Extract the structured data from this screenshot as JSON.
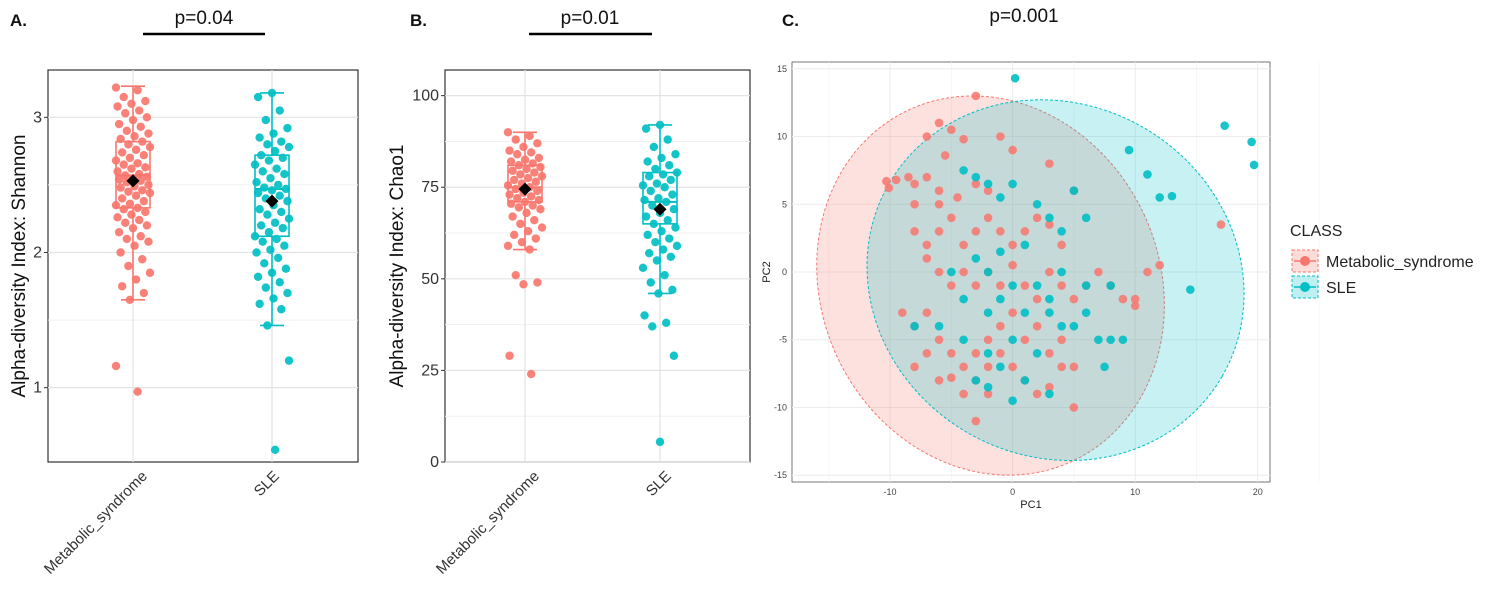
{
  "colors": {
    "metabolic": "#F8766D",
    "sle": "#00BFC4",
    "mean_marker": "#000000"
  },
  "chart_data": [
    {
      "panel": "A.",
      "type": "boxplot",
      "pvalue": "p=0.04",
      "ylabel": "Alpha-diversity Index: Shannon",
      "ylim": [
        0.45,
        3.35
      ],
      "yticks": [
        1,
        2,
        3
      ],
      "categories": [
        "Metabolic_syndrome",
        "SLE"
      ],
      "boxes": [
        {
          "name": "Metabolic_syndrome",
          "whisker_low": 1.65,
          "q1": 2.33,
          "median": 2.57,
          "q3": 2.82,
          "whisker_high": 3.23,
          "mean": 2.53,
          "points": [
            3.22,
            3.2,
            3.15,
            3.12,
            3.1,
            3.08,
            3.05,
            3.03,
            3.0,
            2.98,
            2.95,
            2.93,
            2.9,
            2.88,
            2.86,
            2.84,
            2.82,
            2.8,
            2.78,
            2.76,
            2.74,
            2.72,
            2.7,
            2.68,
            2.66,
            2.65,
            2.63,
            2.62,
            2.6,
            2.58,
            2.57,
            2.56,
            2.55,
            2.54,
            2.53,
            2.52,
            2.5,
            2.49,
            2.48,
            2.46,
            2.45,
            2.44,
            2.42,
            2.4,
            2.38,
            2.36,
            2.35,
            2.33,
            2.32,
            2.3,
            2.28,
            2.26,
            2.24,
            2.22,
            2.2,
            2.18,
            2.15,
            2.12,
            2.1,
            2.08,
            2.05,
            2.0,
            1.95,
            1.9,
            1.85,
            1.8,
            1.75,
            1.7,
            1.65,
            1.16,
            0.97
          ]
        },
        {
          "name": "SLE",
          "whisker_low": 1.46,
          "q1": 2.12,
          "median": 2.47,
          "q3": 2.72,
          "whisker_high": 3.18,
          "mean": 2.38,
          "points": [
            3.18,
            3.15,
            3.05,
            2.98,
            2.92,
            2.88,
            2.85,
            2.82,
            2.8,
            2.78,
            2.75,
            2.72,
            2.7,
            2.68,
            2.65,
            2.62,
            2.6,
            2.58,
            2.55,
            2.52,
            2.5,
            2.48,
            2.47,
            2.46,
            2.44,
            2.42,
            2.4,
            2.38,
            2.35,
            2.32,
            2.3,
            2.28,
            2.25,
            2.22,
            2.2,
            2.18,
            2.15,
            2.12,
            2.1,
            2.08,
            2.05,
            2.02,
            2.0,
            1.96,
            1.92,
            1.88,
            1.85,
            1.82,
            1.78,
            1.74,
            1.7,
            1.66,
            1.62,
            1.58,
            1.46,
            1.2,
            0.54
          ]
        }
      ]
    },
    {
      "panel": "B.",
      "type": "boxplot",
      "pvalue": "p=0.01",
      "ylabel": "Alpha-diversity Index: Chao1",
      "ylim": [
        0,
        107
      ],
      "yticks": [
        0,
        25,
        50,
        75,
        100
      ],
      "categories": [
        "Metabolic_syndrome",
        "SLE"
      ],
      "boxes": [
        {
          "name": "Metabolic_syndrome",
          "whisker_low": 58,
          "q1": 71,
          "median": 75,
          "q3": 81,
          "whisker_high": 90,
          "mean": 74.5,
          "points": [
            90,
            89,
            88,
            87,
            86,
            85,
            84.5,
            84,
            83,
            82.5,
            82,
            81.5,
            81,
            80.5,
            80,
            79.5,
            79,
            78.5,
            78,
            77.5,
            77,
            76.5,
            76,
            75.5,
            75,
            74.5,
            74,
            73.5,
            73,
            72.5,
            72,
            71.5,
            71,
            70.5,
            70,
            69.5,
            69,
            68,
            67,
            66,
            65,
            64,
            63,
            62,
            61,
            60,
            59,
            58,
            51,
            49,
            48.5,
            29,
            24
          ]
        },
        {
          "name": "SLE",
          "whisker_low": 46,
          "q1": 65,
          "median": 71,
          "q3": 79,
          "whisker_high": 92,
          "mean": 69,
          "points": [
            92,
            91,
            88,
            86,
            84,
            83,
            82,
            81,
            80,
            79,
            78.5,
            78,
            77,
            76,
            75.5,
            75,
            74,
            73,
            72,
            71.5,
            71,
            70,
            69,
            68,
            67,
            66,
            65,
            64,
            63,
            62,
            61,
            60,
            59,
            58,
            57,
            56,
            55,
            53,
            51,
            49,
            47,
            46,
            40,
            38,
            37,
            29,
            5.5
          ]
        }
      ]
    },
    {
      "panel": "C.",
      "type": "scatter",
      "pvalue": "p=0.001",
      "xlabel": "PC1",
      "ylabel": "PC2",
      "xlim": [
        -18,
        21
      ],
      "ylim": [
        -15.5,
        15.5
      ],
      "xticks": [
        -10,
        0,
        10,
        20
      ],
      "yticks": [
        -15,
        -10,
        -5,
        0,
        5,
        10,
        15
      ],
      "legend_title": "CLASS",
      "legend_position": "right",
      "series": [
        {
          "name": "Metabolic_syndrome",
          "ellipse": {
            "center": [
              -1.8,
              -1.0
            ],
            "rx": 13.8,
            "ry": 14.3,
            "angle_deg": 25
          },
          "points": [
            [
              -3,
              13
            ],
            [
              -7,
              10
            ],
            [
              -6,
              11
            ],
            [
              -5,
              10.5
            ],
            [
              -4,
              9.8
            ],
            [
              -5.5,
              8.6
            ],
            [
              -10.3,
              6.7
            ],
            [
              -10.1,
              6.2
            ],
            [
              -9.5,
              6.8
            ],
            [
              -8.5,
              7
            ],
            [
              -8,
              6.5
            ],
            [
              -7,
              7
            ],
            [
              -6,
              6
            ],
            [
              -8,
              5
            ],
            [
              -6,
              5
            ],
            [
              -4.5,
              5.5
            ],
            [
              -3,
              6.5
            ],
            [
              -2,
              6
            ],
            [
              -1,
              10
            ],
            [
              0,
              9
            ],
            [
              -5,
              4
            ],
            [
              -8,
              3
            ],
            [
              -7,
              2
            ],
            [
              -6,
              3
            ],
            [
              -4,
              2
            ],
            [
              -3,
              3
            ],
            [
              -2,
              4
            ],
            [
              -1,
              3
            ],
            [
              0,
              2
            ],
            [
              1,
              3
            ],
            [
              2,
              4
            ],
            [
              3,
              3.5
            ],
            [
              4,
              2
            ],
            [
              -7,
              1
            ],
            [
              -6,
              0
            ],
            [
              -5,
              -1
            ],
            [
              -4,
              0
            ],
            [
              -3,
              -1
            ],
            [
              -2,
              0
            ],
            [
              -1,
              -1
            ],
            [
              0,
              0.5
            ],
            [
              1,
              -1
            ],
            [
              2,
              -2
            ],
            [
              3,
              0
            ],
            [
              4,
              -1
            ],
            [
              5,
              -2
            ],
            [
              6,
              -1
            ],
            [
              7,
              0
            ],
            [
              8,
              -1
            ],
            [
              9,
              -2
            ],
            [
              10,
              -2.5
            ],
            [
              -9,
              -3
            ],
            [
              -8,
              -4
            ],
            [
              -7,
              -3
            ],
            [
              -6,
              -5
            ],
            [
              -5,
              -6
            ],
            [
              -4,
              -7
            ],
            [
              -3,
              -6
            ],
            [
              -2,
              -5
            ],
            [
              -1,
              -4
            ],
            [
              0,
              -3
            ],
            [
              1,
              -5
            ],
            [
              2,
              -4
            ],
            [
              3,
              -6
            ],
            [
              4,
              -5
            ],
            [
              5,
              -7
            ],
            [
              -6,
              -8
            ],
            [
              -5,
              -7.8
            ],
            [
              -4,
              -9
            ],
            [
              -3,
              -8
            ],
            [
              -2,
              -7
            ],
            [
              -1,
              -6
            ],
            [
              0,
              -7
            ],
            [
              1,
              -8
            ],
            [
              2,
              -9
            ],
            [
              3,
              -8.5
            ],
            [
              4,
              -7
            ],
            [
              5,
              -10
            ],
            [
              -3,
              -11
            ],
            [
              -2,
              -9
            ],
            [
              -7,
              -6
            ],
            [
              -8,
              -7
            ],
            [
              10,
              -2
            ],
            [
              11,
              0
            ],
            [
              12,
              0.5
            ],
            [
              17,
              3.5
            ],
            [
              3,
              8
            ],
            [
              5,
              6
            ]
          ]
        },
        {
          "name": "SLE",
          "ellipse": {
            "center": [
              3.5,
              -0.6
            ],
            "rx": 15.7,
            "ry": 13.0,
            "angle_deg": -30
          },
          "points": [
            [
              0.2,
              14.3
            ],
            [
              17.3,
              10.8
            ],
            [
              19.5,
              9.6
            ],
            [
              19.7,
              7.9
            ],
            [
              9.5,
              9
            ],
            [
              11,
              7.2
            ],
            [
              12,
              5.5
            ],
            [
              13,
              5.6
            ],
            [
              14.5,
              -1.3
            ],
            [
              -4,
              7.5
            ],
            [
              -3,
              7
            ],
            [
              -2,
              6.5
            ],
            [
              -1,
              5.5
            ],
            [
              0,
              6.5
            ],
            [
              2,
              5
            ],
            [
              3,
              4
            ],
            [
              5,
              6
            ],
            [
              6,
              4
            ],
            [
              4,
              3
            ],
            [
              1,
              2
            ],
            [
              -1,
              1.5
            ],
            [
              -3,
              1
            ],
            [
              -5,
              0
            ],
            [
              -2,
              0
            ],
            [
              0,
              -1
            ],
            [
              2,
              -1
            ],
            [
              4,
              0
            ],
            [
              6,
              -1
            ],
            [
              8,
              -1
            ],
            [
              -4,
              -2
            ],
            [
              -1,
              -2
            ],
            [
              1,
              -3
            ],
            [
              3,
              -3
            ],
            [
              5,
              -4
            ],
            [
              7,
              -5
            ],
            [
              9,
              -5
            ],
            [
              -6,
              -4
            ],
            [
              -4,
              -5
            ],
            [
              -2,
              -6
            ],
            [
              0,
              -5
            ],
            [
              2,
              -6
            ],
            [
              4,
              -4
            ],
            [
              -3,
              -8
            ],
            [
              -1,
              -7
            ],
            [
              1,
              -8
            ],
            [
              3,
              -9
            ],
            [
              -2,
              -8.5
            ],
            [
              0,
              -9.5
            ],
            [
              7.5,
              -7
            ],
            [
              8,
              -5
            ],
            [
              6,
              -3
            ],
            [
              3,
              -2
            ],
            [
              -2,
              -3
            ],
            [
              -8,
              -4
            ]
          ]
        }
      ]
    }
  ]
}
